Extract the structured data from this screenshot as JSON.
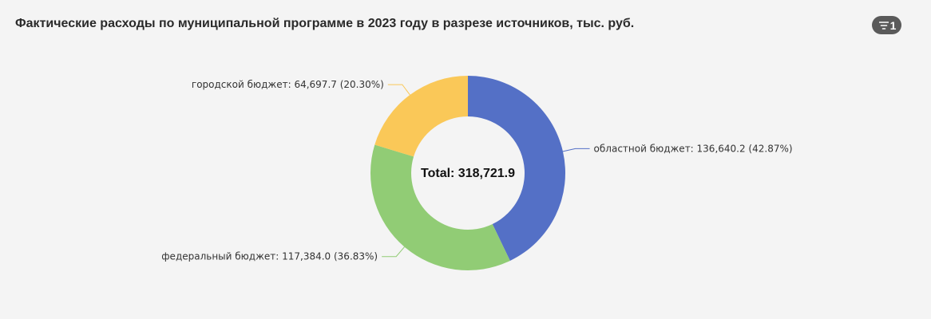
{
  "header": {
    "title": "Фактические расходы по муниципальной программе в 2023 году в разрезе источников, тыс. руб.",
    "filter_badge": {
      "icon": "filter-icon",
      "count": "1"
    }
  },
  "chart_data": {
    "type": "pie",
    "variant": "donut",
    "total_label": "Total: 318,721.9",
    "slices": [
      {
        "name": "областной бюджет",
        "value": 136640.2,
        "percent": 42.87,
        "label": "областной бюджет: 136,640.2 (42.87%)",
        "color": "#5470c6"
      },
      {
        "name": "федеральный бюджет",
        "value": 117384.0,
        "percent": 36.83,
        "label": "федеральный бюджет: 117,384.0 (36.83%)",
        "color": "#91cc75"
      },
      {
        "name": "городской бюджет",
        "value": 64697.7,
        "percent": 20.3,
        "label": "городской бюджет: 64,697.7 (20.30%)",
        "color": "#fac858"
      }
    ]
  }
}
